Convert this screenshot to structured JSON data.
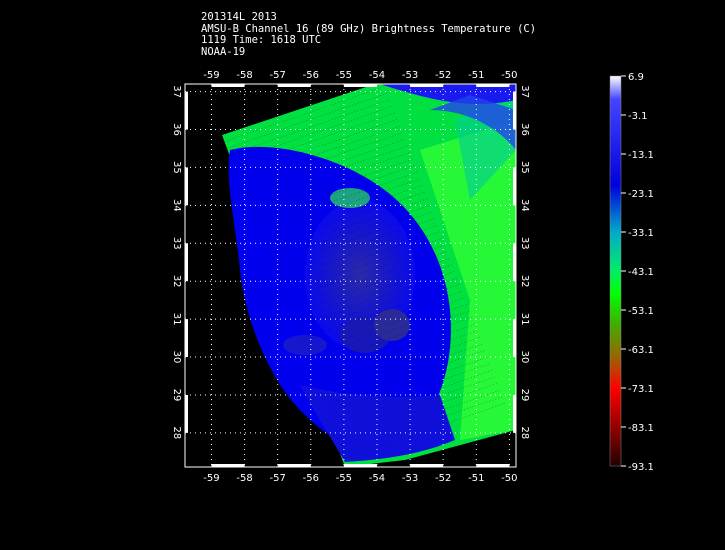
{
  "header": {
    "line1": "201314L 2013",
    "line2": "AMSU-B Channel 16 (89 GHz) Brightness Temperature (C)",
    "line3": "1119 Time: 1618 UTC",
    "line4": "NOAA-19"
  },
  "map": {
    "lon_ticks": [
      "-59",
      "-58",
      "-57",
      "-56",
      "-55",
      "-54",
      "-53",
      "-52",
      "-51",
      "-50"
    ],
    "lat_ticks": [
      "37",
      "36",
      "35",
      "34",
      "33",
      "32",
      "31",
      "30",
      "29",
      "28"
    ],
    "lon_range": [
      -59.8,
      -49.8
    ],
    "lat_range": [
      27.1,
      37.2
    ]
  },
  "colorbar": {
    "labels": [
      "6.9",
      "-3.1",
      "-13.1",
      "-23.1",
      "-33.1",
      "-43.1",
      "-53.1",
      "-63.1",
      "-73.1",
      "-83.1",
      "-93.1"
    ],
    "range": [
      6.9,
      -93.1
    ],
    "colors": [
      "#ffffff",
      "#0000ff",
      "#0033cc",
      "#00cc66",
      "#00ff00",
      "#66aa00",
      "#aa5500",
      "#ff0000",
      "#aa0000",
      "#330000"
    ]
  }
}
